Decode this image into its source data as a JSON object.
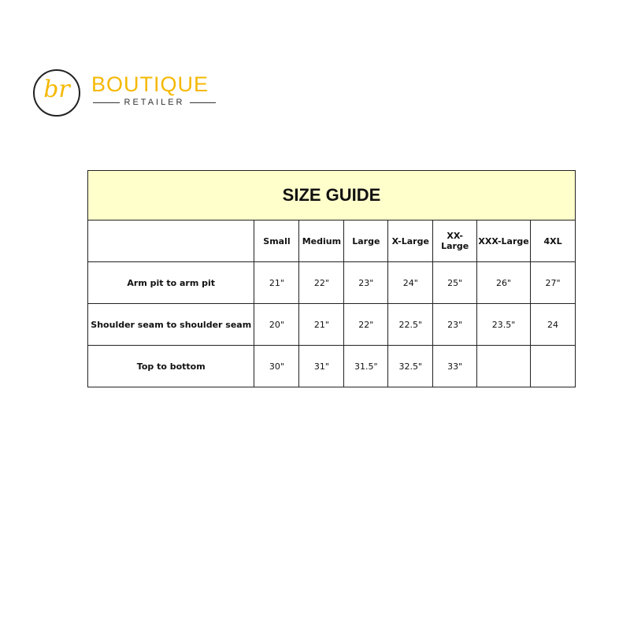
{
  "logo": {
    "monogram": "br",
    "brand": "BOUTIQUE",
    "subtitle": "RETAILER",
    "color": "#f5b800"
  },
  "table": {
    "title": "SIZE GUIDE",
    "title_bg": "#ffffcc",
    "columns": [
      "",
      "Small",
      "Medium",
      "Large",
      "X-Large",
      "XX-Large",
      "XXX-Large",
      "4XL"
    ],
    "rows": [
      {
        "label": "Arm pit to arm pit",
        "values": [
          "21\"",
          "22\"",
          "23\"",
          "24\"",
          "25\"",
          "26\"",
          "27\""
        ]
      },
      {
        "label": "Shoulder seam to shoulder seam",
        "values": [
          "20\"",
          "21\"",
          "22\"",
          "22.5\"",
          "23\"",
          "23.5\"",
          "24"
        ]
      },
      {
        "label": "Top to bottom",
        "values": [
          "30\"",
          "31\"",
          "31.5\"",
          "32.5\"",
          "33\"",
          "",
          ""
        ]
      }
    ]
  }
}
